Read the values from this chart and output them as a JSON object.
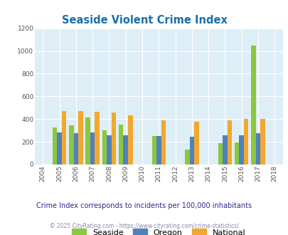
{
  "title": "Seaside Violent Crime Index",
  "years": [
    2004,
    2005,
    2006,
    2007,
    2008,
    2009,
    2010,
    2011,
    2012,
    2013,
    2014,
    2015,
    2016,
    2017,
    2018
  ],
  "bar_years": [
    2005,
    2006,
    2007,
    2008,
    2009,
    2011,
    2013,
    2015,
    2016,
    2017
  ],
  "seaside": [
    325,
    345,
    415,
    300,
    350,
    250,
    130,
    190,
    195,
    1050
  ],
  "oregon": [
    285,
    275,
    285,
    255,
    255,
    250,
    245,
    260,
    260,
    275
  ],
  "national": [
    470,
    470,
    465,
    455,
    435,
    390,
    375,
    390,
    400,
    400
  ],
  "seaside_color": "#8dc63f",
  "oregon_color": "#4f81bd",
  "national_color": "#f0a830",
  "bg_color": "#ddeef6",
  "grid_color": "#ffffff",
  "ylim": [
    0,
    1200
  ],
  "yticks": [
    0,
    200,
    400,
    600,
    800,
    1000,
    1200
  ],
  "subtitle": "Crime Index corresponds to incidents per 100,000 inhabitants",
  "footer": "© 2025 CityRating.com - https://www.cityrating.com/crime-statistics/",
  "title_color": "#1a6fa8",
  "subtitle_color": "#2c2c8c",
  "footer_color": "#8888aa",
  "legend_labels": [
    "Seaside",
    "Oregon",
    "National"
  ],
  "bar_width": 0.28
}
